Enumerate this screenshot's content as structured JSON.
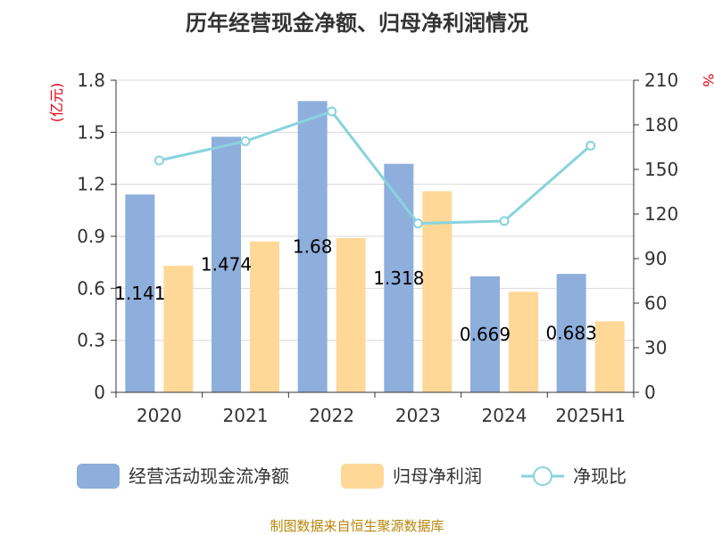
{
  "chart_data": {
    "type": "bar",
    "title": "历年经营现金净额、归母净利润情况",
    "categories": [
      "2020",
      "2021",
      "2022",
      "2023",
      "2024",
      "2025H1"
    ],
    "series": [
      {
        "name": "经营活动现金流净额",
        "kind": "bar",
        "axis": "left",
        "color": "#8eaedc",
        "values": [
          1.141,
          1.474,
          1.68,
          1.318,
          0.669,
          0.683
        ],
        "labels": [
          "1.141",
          "1.474",
          "1.68",
          "1.318",
          "0.669",
          "0.683"
        ]
      },
      {
        "name": "归母净利润",
        "kind": "bar",
        "axis": "left",
        "color": "#ffd898",
        "values": [
          0.73,
          0.87,
          0.89,
          1.16,
          0.58,
          0.41
        ]
      },
      {
        "name": "净现比",
        "kind": "line",
        "axis": "right",
        "color": "#88d3dd",
        "values": [
          156,
          169,
          189,
          113.6,
          115.3,
          166
        ]
      }
    ],
    "y_left": {
      "unit": "(亿元)",
      "ylim": [
        0,
        1.8
      ],
      "ticks": [
        "0",
        "0.3",
        "0.6",
        "0.9",
        "1.2",
        "1.5",
        "1.8"
      ]
    },
    "y_right": {
      "unit": "%",
      "ylim": [
        0,
        210
      ],
      "ticks": [
        "0",
        "30",
        "60",
        "90",
        "120",
        "150",
        "180",
        "210"
      ]
    },
    "grid": true,
    "legend_position": "bottom"
  },
  "footer": {
    "source": "制图数据来自恒生聚源数据库"
  }
}
